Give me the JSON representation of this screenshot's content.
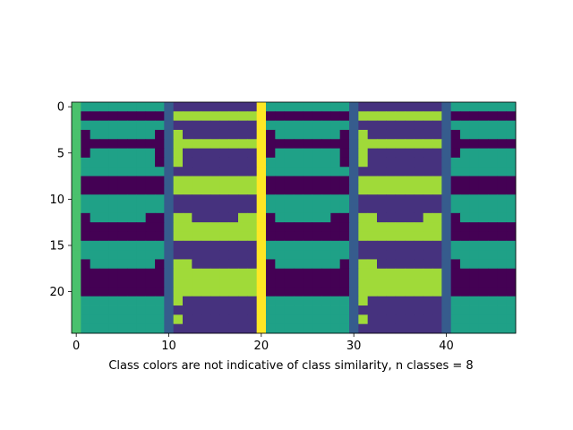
{
  "chart_data": {
    "type": "heatmap",
    "title": "",
    "xlabel": "Class colors are not indicative of class similarity, n classes = 8",
    "ylabel": "",
    "n_rows": 25,
    "n_cols": 48,
    "xlim": [
      -0.5,
      47.5
    ],
    "ylim": [
      24.5,
      -0.5
    ],
    "x_ticks": [
      0,
      10,
      20,
      30,
      40
    ],
    "y_ticks": [
      0,
      5,
      10,
      15,
      20
    ],
    "colormap": "viridis",
    "class_colors": [
      "#440154",
      "#46327e",
      "#365c8d",
      "#277f8e",
      "#1fa187",
      "#4ac16d",
      "#a0da39",
      "#fde725"
    ],
    "column_segments": [
      {
        "cols": [
          0,
          0
        ],
        "band": "left-edge"
      },
      {
        "cols": [
          1,
          9
        ],
        "band": "a"
      },
      {
        "cols": [
          10,
          10
        ],
        "band": "divider"
      },
      {
        "cols": [
          11,
          19
        ],
        "band": "b"
      },
      {
        "cols": [
          20,
          20
        ],
        "band": "center"
      },
      {
        "cols": [
          21,
          29
        ],
        "band": "a"
      },
      {
        "cols": [
          30,
          30
        ],
        "band": "divider"
      },
      {
        "cols": [
          31,
          39
        ],
        "band": "b"
      },
      {
        "cols": [
          40,
          40
        ],
        "band": "divider"
      },
      {
        "cols": [
          41,
          47
        ],
        "band": "a"
      }
    ],
    "rows": [
      {
        "row": 0,
        "a": "4444444444",
        "b": "1111111111"
      },
      {
        "row": 1,
        "a": "0000000000",
        "b": "6666666666"
      },
      {
        "row": 2,
        "a": "4444444444",
        "b": "1111111111"
      },
      {
        "row": 3,
        "a": "0444444400",
        "b": "6111111116"
      },
      {
        "row": 4,
        "a": "0000000000",
        "b": "6666666666"
      },
      {
        "row": 5,
        "a": "0444444400",
        "b": "6111111116"
      },
      {
        "row": 6,
        "a": "4444444400",
        "b": "6111111116"
      },
      {
        "row": 7,
        "a": "4444444444",
        "b": "1111111111"
      },
      {
        "row": 8,
        "a": "0000000000",
        "b": "6666666666"
      },
      {
        "row": 9,
        "a": "0000000000",
        "b": "6666666666"
      },
      {
        "row": 10,
        "a": "4444444444",
        "b": "1111111111"
      },
      {
        "row": 11,
        "a": "4444444444",
        "b": "1111111111"
      },
      {
        "row": 12,
        "a": "0444444000",
        "b": "6611111666"
      },
      {
        "row": 13,
        "a": "0000000000",
        "b": "6666666666"
      },
      {
        "row": 14,
        "a": "0000000000",
        "b": "6666666666"
      },
      {
        "row": 15,
        "a": "4444444444",
        "b": "1111111111"
      },
      {
        "row": 16,
        "a": "4444444444",
        "b": "1111111111"
      },
      {
        "row": 17,
        "a": "0444444400",
        "b": "6611111116"
      },
      {
        "row": 18,
        "a": "0000000000",
        "b": "6666666666"
      },
      {
        "row": 19,
        "a": "0000000000",
        "b": "6666666666"
      },
      {
        "row": 20,
        "a": "0000000000",
        "b": "6666666666"
      },
      {
        "row": 21,
        "a": "4444444440",
        "b": "6111111111"
      },
      {
        "row": 22,
        "a": "4444444444",
        "b": "1111111111"
      },
      {
        "row": 23,
        "a": "4444444444",
        "b": "6111111111"
      },
      {
        "row": 24,
        "a": "4444444444",
        "b": "1111111111"
      }
    ],
    "edge_class": 5,
    "divider_class": 2,
    "center_class": 7,
    "grid": false,
    "legend": "none"
  }
}
